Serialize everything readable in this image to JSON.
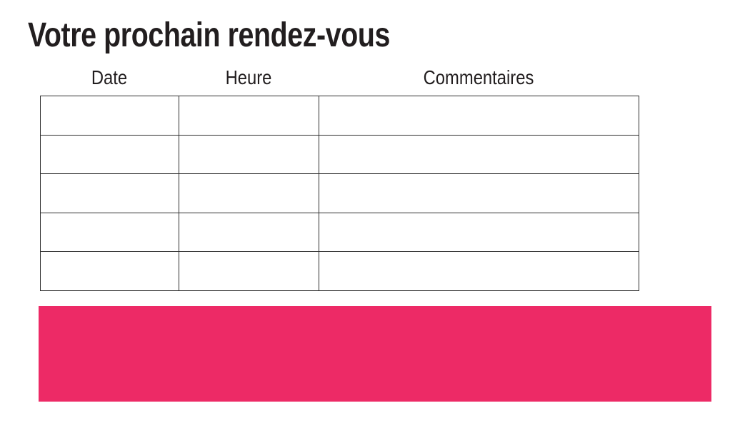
{
  "page": {
    "title": "Votre prochain rendez-vous"
  },
  "appointments_table": {
    "headers": [
      {
        "label": "Date"
      },
      {
        "label": "Heure"
      },
      {
        "label": "Commentaires"
      }
    ],
    "rows": [
      {
        "date": "",
        "heure": "",
        "commentaires": ""
      },
      {
        "date": "",
        "heure": "",
        "commentaires": ""
      },
      {
        "date": "",
        "heure": "",
        "commentaires": ""
      },
      {
        "date": "",
        "heure": "",
        "commentaires": ""
      },
      {
        "date": "",
        "heure": "",
        "commentaires": ""
      }
    ]
  },
  "highlight_band": {
    "label": "",
    "color": "#ED2A66"
  },
  "colors": {
    "text": "#221E1F",
    "table_border": "#2E2E2E",
    "accent": "#ED2A66",
    "background": "#FFFFFF"
  }
}
